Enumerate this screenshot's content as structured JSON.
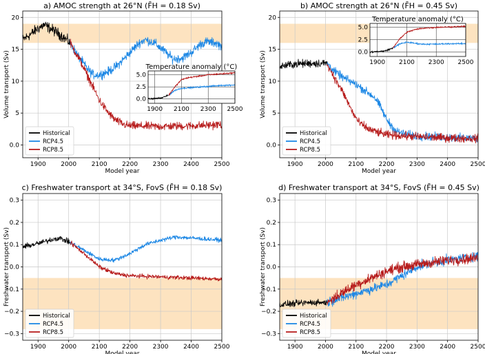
{
  "chart_data": [
    {
      "id": "a",
      "type": "line",
      "title": "a) AMOC strength at 26°N (F̄H = 0.18 Sv)",
      "xlabel": "Model year",
      "ylabel": "Volume transport (Sv)",
      "xlim": [
        1850,
        2500
      ],
      "ylim": [
        -2,
        21
      ],
      "xticks": [
        1900,
        2000,
        2100,
        2200,
        2300,
        2400,
        2500
      ],
      "yticks": [
        0,
        5,
        10,
        15,
        20
      ],
      "grid": true,
      "band": [
        16,
        19
      ],
      "band_color": "#fde3c0",
      "legend": {
        "placement": "lower-left",
        "entries": [
          {
            "label": "Historical",
            "color": "#000000"
          },
          {
            "label": "RCP4.5",
            "color": "#1e88e5"
          },
          {
            "label": "RCP8.5",
            "color": "#b71c1c"
          }
        ]
      },
      "series": [
        {
          "name": "Historical",
          "color": "#000000",
          "noise": 0.7,
          "x": [
            1850,
            1880,
            1900,
            1920,
            1950,
            1980,
            2005
          ],
          "y": [
            16.5,
            17.5,
            18.3,
            18.8,
            18.0,
            17.0,
            16.0
          ]
        },
        {
          "name": "RCP4.5",
          "color": "#1e88e5",
          "noise": 0.6,
          "x": [
            2005,
            2030,
            2060,
            2080,
            2100,
            2130,
            2160,
            2200,
            2230,
            2250,
            2280,
            2310,
            2340,
            2370,
            2400,
            2430,
            2450,
            2480,
            2500
          ],
          "y": [
            16.0,
            14.0,
            12.0,
            11.0,
            11.0,
            11.5,
            12.5,
            14.5,
            16.0,
            16.5,
            16.0,
            14.8,
            13.5,
            13.6,
            14.5,
            15.8,
            16.2,
            16.0,
            15.5
          ]
        },
        {
          "name": "RCP8.5",
          "color": "#b71c1c",
          "noise": 0.55,
          "x": [
            2005,
            2040,
            2070,
            2100,
            2130,
            2150,
            2180,
            2200,
            2300,
            2400,
            2500
          ],
          "y": [
            16.0,
            13.0,
            10.0,
            7.0,
            5.0,
            4.0,
            3.2,
            3.0,
            2.9,
            3.0,
            3.2
          ]
        }
      ],
      "inset": {
        "title": "Temperature anomaly (°C)",
        "xlim": [
          1850,
          2500
        ],
        "ylim": [
          -0.9,
          5.8
        ],
        "xticks": [
          1900,
          2100,
          2300,
          2500
        ],
        "yticks": [
          0.0,
          2.5,
          5.0
        ],
        "series": [
          {
            "name": "Historical",
            "color": "#000000",
            "noise": 0.12,
            "x": [
              1850,
              1950,
              2005
            ],
            "y": [
              0.0,
              0.2,
              0.8
            ]
          },
          {
            "name": "RCP4.5",
            "color": "#1e88e5",
            "noise": 0.12,
            "x": [
              2005,
              2050,
              2100,
              2200,
              2300,
              2400,
              2500
            ],
            "y": [
              0.8,
              1.8,
              2.2,
              2.4,
              2.6,
              2.8,
              2.9
            ]
          },
          {
            "name": "RCP8.5",
            "color": "#b71c1c",
            "noise": 0.12,
            "x": [
              2005,
              2050,
              2100,
              2150,
              2200,
              2300,
              2400,
              2500
            ],
            "y": [
              0.8,
              2.5,
              4.0,
              4.4,
              4.6,
              5.0,
              5.2,
              5.4
            ]
          }
        ]
      }
    },
    {
      "id": "b",
      "type": "line",
      "title": "b) AMOC strength at 26°N (F̄H = 0.45 Sv)",
      "xlabel": "Model year",
      "ylabel": "Volume transport (Sv)",
      "xlim": [
        1850,
        2500
      ],
      "ylim": [
        -2,
        21
      ],
      "xticks": [
        1900,
        2000,
        2100,
        2200,
        2300,
        2400,
        2500
      ],
      "yticks": [
        0,
        5,
        10,
        15,
        20
      ],
      "grid": true,
      "band": [
        16,
        19
      ],
      "band_color": "#fde3c0",
      "legend": {
        "placement": "lower-left",
        "entries": [
          {
            "label": "Historical",
            "color": "#000000"
          },
          {
            "label": "RCP4.5",
            "color": "#1e88e5"
          },
          {
            "label": "RCP8.5",
            "color": "#b71c1c"
          }
        ]
      },
      "series": [
        {
          "name": "Historical",
          "color": "#000000",
          "noise": 0.55,
          "x": [
            1850,
            1900,
            1950,
            2005
          ],
          "y": [
            12.3,
            12.7,
            12.8,
            12.8
          ]
        },
        {
          "name": "RCP4.5",
          "color": "#1e88e5",
          "noise": 0.55,
          "x": [
            2005,
            2030,
            2060,
            2100,
            2130,
            2160,
            2180,
            2200,
            2230,
            2260,
            2300,
            2400,
            2500
          ],
          "y": [
            12.8,
            11.5,
            10.5,
            9.5,
            8.5,
            7.5,
            6.0,
            4.0,
            2.2,
            1.7,
            1.4,
            1.2,
            1.0
          ]
        },
        {
          "name": "RCP8.5",
          "color": "#b71c1c",
          "noise": 0.55,
          "x": [
            2005,
            2030,
            2060,
            2090,
            2110,
            2140,
            2170,
            2200,
            2300,
            2400,
            2500
          ],
          "y": [
            12.8,
            10.5,
            8.0,
            5.0,
            3.5,
            2.5,
            2.0,
            1.6,
            1.3,
            1.1,
            1.0
          ]
        }
      ],
      "inset": {
        "title": "Temperature anomaly (°C)",
        "xlim": [
          1850,
          2500
        ],
        "ylim": [
          -0.9,
          5.8
        ],
        "xticks": [
          1900,
          2100,
          2300,
          2500
        ],
        "yticks": [
          0.0,
          2.5,
          5.0
        ],
        "series": [
          {
            "name": "Historical",
            "color": "#000000",
            "noise": 0.12,
            "x": [
              1850,
              1950,
              2005
            ],
            "y": [
              0.0,
              0.2,
              0.8
            ]
          },
          {
            "name": "RCP4.5",
            "color": "#1e88e5",
            "noise": 0.12,
            "x": [
              2005,
              2050,
              2100,
              2150,
              2200,
              2300,
              2400,
              2500
            ],
            "y": [
              0.8,
              1.6,
              2.0,
              1.8,
              1.6,
              1.6,
              1.7,
              1.7
            ]
          },
          {
            "name": "RCP8.5",
            "color": "#b71c1c",
            "noise": 0.12,
            "x": [
              2005,
              2050,
              2100,
              2150,
              2200,
              2300,
              2400,
              2500
            ],
            "y": [
              0.8,
              2.6,
              4.0,
              4.5,
              4.8,
              5.0,
              5.1,
              5.2
            ]
          }
        ]
      }
    },
    {
      "id": "c",
      "type": "line",
      "title": "c) Freshwater transport at 34°S, FovS (F̄H = 0.18 Sv)",
      "xlabel": "Model year",
      "ylabel": "Freshwater transport (Sv)",
      "xlim": [
        1850,
        2500
      ],
      "ylim": [
        -0.33,
        0.33
      ],
      "xticks": [
        1900,
        2000,
        2100,
        2200,
        2300,
        2400,
        2500
      ],
      "yticks": [
        -0.3,
        -0.2,
        -0.1,
        0.0,
        0.1,
        0.2,
        0.3
      ],
      "grid": true,
      "band": [
        -0.28,
        -0.05
      ],
      "band_color": "#fde3c0",
      "legend": {
        "placement": "lower-left",
        "entries": [
          {
            "label": "Historical",
            "color": "#000000"
          },
          {
            "label": "RCP4.5",
            "color": "#1e88e5"
          },
          {
            "label": "RCP8.5",
            "color": "#b71c1c"
          }
        ]
      },
      "series": [
        {
          "name": "Historical",
          "color": "#000000",
          "noise": 0.01,
          "x": [
            1850,
            1900,
            1950,
            1970,
            2005
          ],
          "y": [
            0.09,
            0.105,
            0.125,
            0.13,
            0.11
          ]
        },
        {
          "name": "RCP4.5",
          "color": "#1e88e5",
          "noise": 0.008,
          "x": [
            2005,
            2050,
            2100,
            2150,
            2200,
            2250,
            2300,
            2350,
            2400,
            2450,
            2500
          ],
          "y": [
            0.11,
            0.075,
            0.035,
            0.03,
            0.06,
            0.1,
            0.12,
            0.135,
            0.13,
            0.125,
            0.12
          ]
        },
        {
          "name": "RCP8.5",
          "color": "#b71c1c",
          "noise": 0.008,
          "x": [
            2005,
            2050,
            2100,
            2150,
            2200,
            2300,
            2400,
            2500
          ],
          "y": [
            0.11,
            0.06,
            0.0,
            -0.03,
            -0.04,
            -0.045,
            -0.05,
            -0.055
          ]
        }
      ]
    },
    {
      "id": "d",
      "type": "line",
      "title": "d) Freshwater transport at 34°S, FovS (F̄H = 0.45 Sv)",
      "xlabel": "Model year",
      "ylabel": "Freshwater transport (Sv)",
      "xlim": [
        1850,
        2500
      ],
      "ylim": [
        -0.33,
        0.33
      ],
      "xticks": [
        1900,
        2000,
        2100,
        2200,
        2300,
        2400,
        2500
      ],
      "yticks": [
        -0.3,
        -0.2,
        -0.1,
        0.0,
        0.1,
        0.2,
        0.3
      ],
      "grid": true,
      "band": [
        -0.28,
        -0.05
      ],
      "band_color": "#fde3c0",
      "legend": {
        "placement": "lower-left",
        "entries": [
          {
            "label": "Historical",
            "color": "#000000"
          },
          {
            "label": "RCP4.5",
            "color": "#1e88e5"
          },
          {
            "label": "RCP8.5",
            "color": "#b71c1c"
          }
        ]
      },
      "series": [
        {
          "name": "Historical",
          "color": "#000000",
          "noise": 0.012,
          "x": [
            1850,
            1900,
            1950,
            2005
          ],
          "y": [
            -0.17,
            -0.165,
            -0.16,
            -0.16
          ]
        },
        {
          "name": "RCP4.5",
          "color": "#1e88e5",
          "noise": 0.018,
          "x": [
            2005,
            2050,
            2100,
            2150,
            2200,
            2250,
            2300,
            2350,
            2400,
            2450,
            2500
          ],
          "y": [
            -0.16,
            -0.14,
            -0.12,
            -0.1,
            -0.08,
            -0.04,
            0.0,
            0.02,
            0.03,
            0.04,
            0.05
          ]
        },
        {
          "name": "RCP8.5",
          "color": "#b71c1c",
          "noise": 0.02,
          "x": [
            2005,
            2050,
            2100,
            2150,
            2200,
            2250,
            2300,
            2350,
            2400,
            2450,
            2500
          ],
          "y": [
            -0.16,
            -0.12,
            -0.08,
            -0.05,
            -0.02,
            0.0,
            0.01,
            0.02,
            0.03,
            0.035,
            0.04
          ]
        }
      ]
    }
  ]
}
